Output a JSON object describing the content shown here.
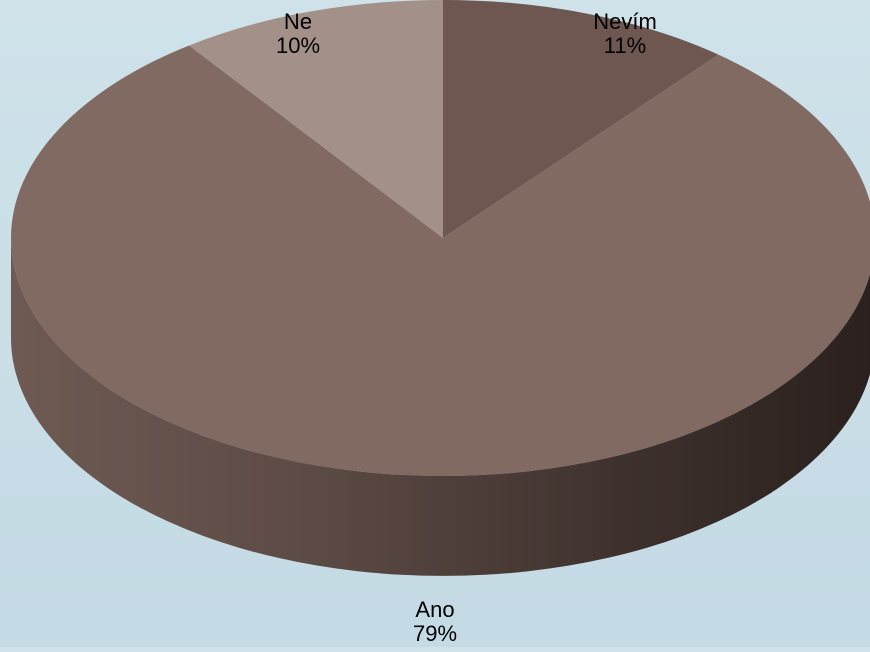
{
  "chart_data": {
    "type": "pie",
    "variant": "3d",
    "title": "",
    "categories": [
      "Nevím",
      "Ano",
      "Ne"
    ],
    "values": [
      11,
      79,
      10
    ],
    "labels": [
      {
        "name": "Nevím",
        "percent": "11%"
      },
      {
        "name": "Ano",
        "percent": "79%"
      },
      {
        "name": "Ne",
        "percent": "10%"
      }
    ],
    "colors": [
      "#6d5750",
      "#806a62",
      "#a39089"
    ],
    "start_angle_deg": 270,
    "direction": "clockwise",
    "legend": "none",
    "grid": false
  },
  "background_color": "#c9dee7"
}
